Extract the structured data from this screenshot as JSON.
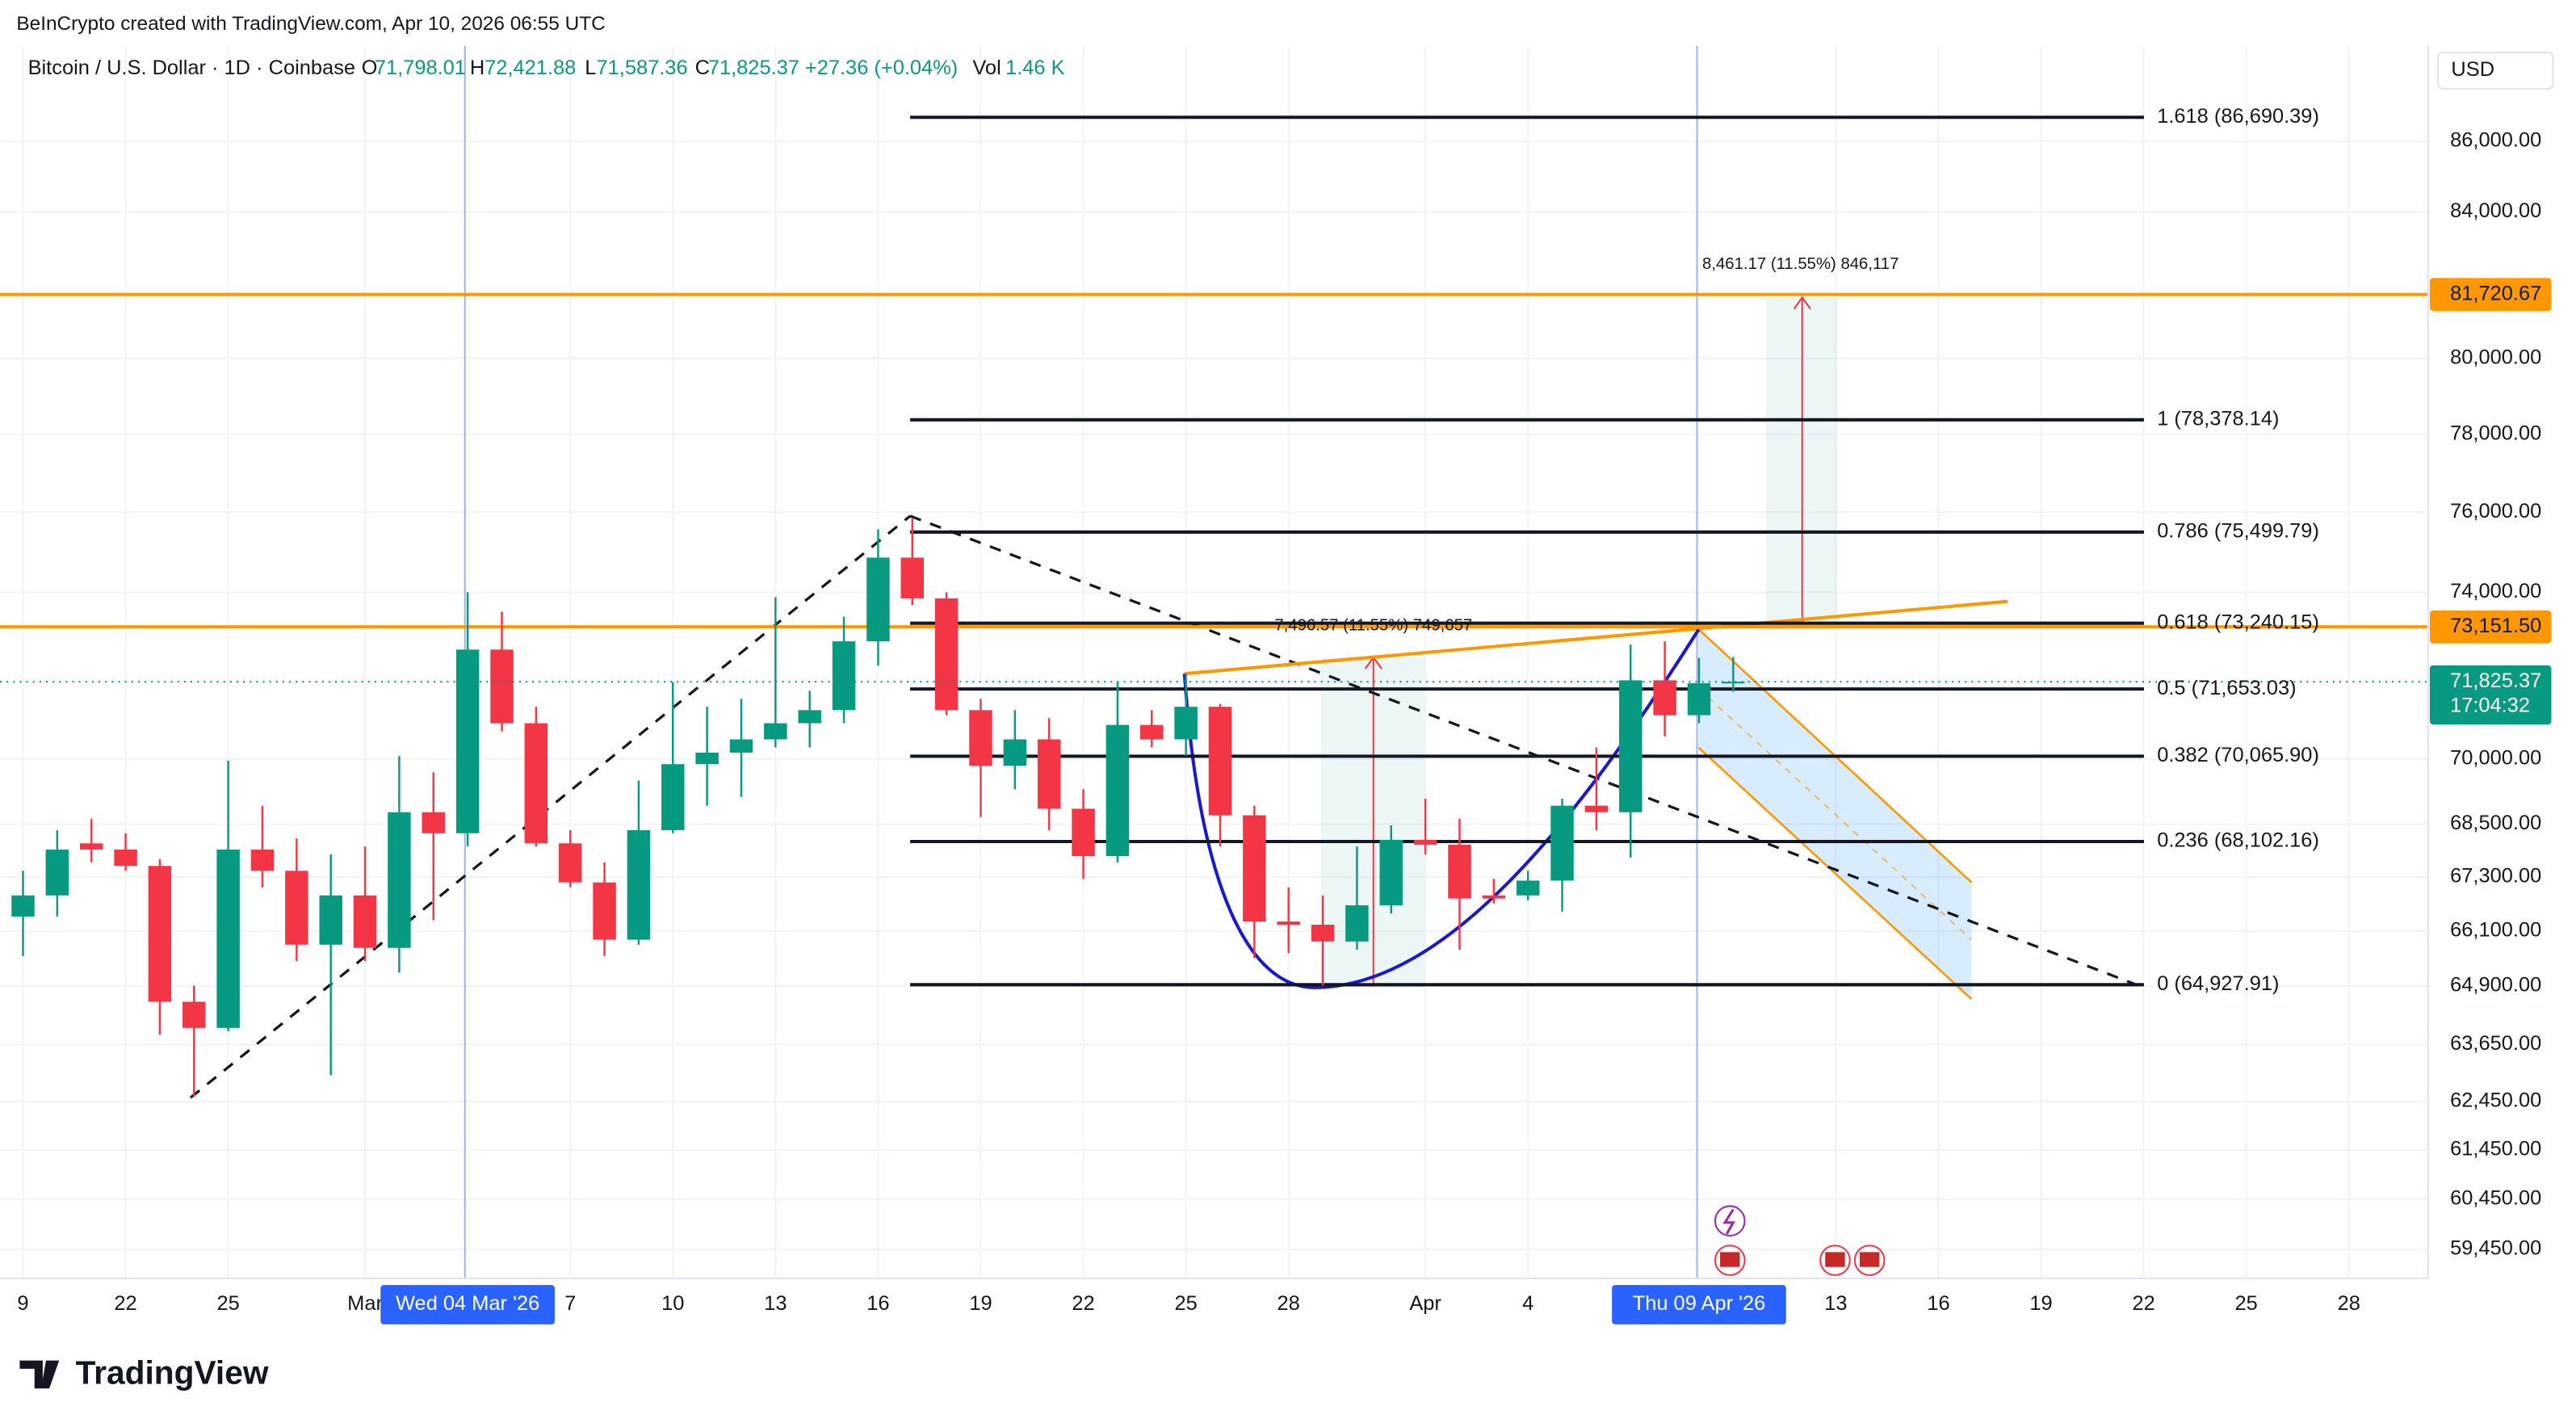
{
  "header": {
    "attribution": "BeInCrypto created with TradingView.com, Apr 10, 2026 06:55 UTC",
    "logo": "TradingView"
  },
  "chart_data": {
    "type": "candlestick",
    "title": "Bitcoin / U.S. Dollar · 1D · Coinbase",
    "legend_values": {
      "open_label": "O",
      "open": "71,798.01",
      "high_label": "H",
      "high": "72,421.88",
      "low_label": "L",
      "low": "71,587.36",
      "close_label": "C",
      "close": "71,825.37",
      "change": "+27.36 (+0.04%)",
      "volume_label": "Vol",
      "volume": "1.46 K"
    },
    "currency": "USD",
    "x": [
      "2026-02-19",
      "2026-02-20",
      "2026-02-21",
      "2026-02-22",
      "2026-02-23",
      "2026-02-24",
      "2026-02-25",
      "2026-02-26",
      "2026-02-27",
      "2026-02-28",
      "2026-03-01",
      "2026-03-02",
      "2026-03-03",
      "2026-03-04",
      "2026-03-05",
      "2026-03-06",
      "2026-03-07",
      "2026-03-08",
      "2026-03-09",
      "2026-03-10",
      "2026-03-11",
      "2026-03-12",
      "2026-03-13",
      "2026-03-14",
      "2026-03-15",
      "2026-03-16",
      "2026-03-17",
      "2026-03-18",
      "2026-03-19",
      "2026-03-20",
      "2026-03-21",
      "2026-03-22",
      "2026-03-23",
      "2026-03-24",
      "2026-03-25",
      "2026-03-26",
      "2026-03-27",
      "2026-03-28",
      "2026-03-29",
      "2026-03-30",
      "2026-03-31",
      "2026-04-01",
      "2026-04-02",
      "2026-04-03",
      "2026-04-04",
      "2026-04-05",
      "2026-04-06",
      "2026-04-07",
      "2026-04-08",
      "2026-04-09",
      "2026-04-10"
    ],
    "open": [
      66420,
      66890,
      68060,
      67920,
      67550,
      64560,
      64000,
      67920,
      67440,
      65800,
      66890,
      65730,
      68770,
      68290,
      72600,
      70840,
      68060,
      67180,
      65910,
      68360,
      69880,
      70150,
      70460,
      70840,
      71150,
      72800,
      74860,
      73850,
      71150,
      69840,
      70460,
      68850,
      67770,
      70800,
      70460,
      71230,
      68700,
      66310,
      66240,
      65870,
      66670,
      68140,
      68030,
      66890,
      66890,
      67220,
      68920,
      68770,
      71860,
      71030,
      71798.01
    ],
    "high": [
      67440,
      68360,
      68620,
      68290,
      67700,
      64910,
      69960,
      68920,
      68170,
      67810,
      67990,
      70070,
      69690,
      74000,
      73520,
      71230,
      68360,
      67630,
      69500,
      71820,
      71230,
      71420,
      73880,
      71610,
      73400,
      75570,
      75860,
      74000,
      71420,
      71150,
      70960,
      69300,
      71820,
      71150,
      72010,
      71300,
      68920,
      67070,
      66890,
      67990,
      68470,
      69080,
      68620,
      67260,
      67440,
      69080,
      70270,
      72720,
      72800,
      72400,
      72421.88
    ],
    "low": [
      65550,
      66420,
      67630,
      67440,
      63860,
      62550,
      63930,
      67070,
      65440,
      63000,
      65440,
      65190,
      66340,
      67990,
      70650,
      67990,
      67070,
      65550,
      65800,
      68290,
      68920,
      69120,
      70270,
      70270,
      70840,
      72210,
      73690,
      71030,
      68660,
      69300,
      68360,
      67260,
      67630,
      70270,
      70070,
      67990,
      65510,
      65620,
      64910,
      65690,
      66490,
      67810,
      65690,
      66710,
      66780,
      66530,
      68360,
      67740,
      70530,
      70840,
      71587.36
    ],
    "close": [
      66890,
      67920,
      67920,
      67550,
      64560,
      64000,
      67920,
      67440,
      65800,
      66890,
      65730,
      68770,
      68290,
      72600,
      70840,
      68060,
      67180,
      65910,
      68360,
      69880,
      70150,
      70460,
      70840,
      71150,
      72800,
      74860,
      73850,
      71150,
      69840,
      70460,
      68850,
      67770,
      70800,
      70460,
      71230,
      68700,
      66310,
      66240,
      65870,
      66670,
      68140,
      68030,
      66820,
      66820,
      67220,
      68920,
      68770,
      71860,
      71030,
      71790,
      71825.37
    ],
    "up_color": "#089981",
    "down_color": "#f23645",
    "log_scale": true,
    "grid": true,
    "ylim": [
      58875,
      88775
    ],
    "yticks": [
      {
        "value": 86000,
        "label": "86,000.00"
      },
      {
        "value": 84000,
        "label": "84,000.00"
      },
      {
        "value": 80000,
        "label": "80,000.00"
      },
      {
        "value": 78000,
        "label": "78,000.00"
      },
      {
        "value": 76000,
        "label": "76,000.00"
      },
      {
        "value": 74000,
        "label": "74,000.00"
      },
      {
        "value": 70000,
        "label": "70,000.00"
      },
      {
        "value": 68500,
        "label": "68,500.00"
      },
      {
        "value": 67300,
        "label": "67,300.00"
      },
      {
        "value": 66100,
        "label": "66,100.00"
      },
      {
        "value": 64900,
        "label": "64,900.00"
      },
      {
        "value": 63650,
        "label": "63,650.00"
      },
      {
        "value": 62450,
        "label": "62,450.00"
      },
      {
        "value": 61450,
        "label": "61,450.00"
      },
      {
        "value": 60450,
        "label": "60,450.00"
      },
      {
        "value": 59450,
        "label": "59,450.00"
      }
    ],
    "xticks": [
      {
        "value": "2026-02-19",
        "label": "9"
      },
      {
        "value": "2026-02-22",
        "label": "22"
      },
      {
        "value": "2026-02-25",
        "label": "25"
      },
      {
        "value": "2026-03-01",
        "label": "Mar"
      },
      {
        "value": "2026-03-07",
        "label": "7"
      },
      {
        "value": "2026-03-10",
        "label": "10"
      },
      {
        "value": "2026-03-13",
        "label": "13"
      },
      {
        "value": "2026-03-16",
        "label": "16"
      },
      {
        "value": "2026-03-19",
        "label": "19"
      },
      {
        "value": "2026-03-22",
        "label": "22"
      },
      {
        "value": "2026-03-25",
        "label": "25"
      },
      {
        "value": "2026-03-28",
        "label": "28"
      },
      {
        "value": "2026-04-01",
        "label": "Apr"
      },
      {
        "value": "2026-04-04",
        "label": "4"
      },
      {
        "value": "2026-04-13",
        "label": "13"
      },
      {
        "value": "2026-04-16",
        "label": "16"
      },
      {
        "value": "2026-04-19",
        "label": "19"
      },
      {
        "value": "2026-04-22",
        "label": "22"
      },
      {
        "value": "2026-04-25",
        "label": "25"
      },
      {
        "value": "2026-04-28",
        "label": "28"
      }
    ],
    "crosshair_labels": [
      {
        "value": "2026-03-04",
        "label": "Wed 04 Mar '26"
      },
      {
        "value": "2026-04-09",
        "label": "Thu 09 Apr '26"
      }
    ],
    "fib_levels": [
      {
        "value": 86690.39,
        "label": "1.618 (86,690.39)"
      },
      {
        "value": 78378.14,
        "label": "1 (78,378.14)"
      },
      {
        "value": 75499.79,
        "label": "0.786 (75,499.79)"
      },
      {
        "value": 73240.15,
        "label": "0.618 (73,240.15)"
      },
      {
        "value": 71653.03,
        "label": "0.5 (71,653.03)"
      },
      {
        "value": 70065.9,
        "label": "0.382 (70,065.90)"
      },
      {
        "value": 68102.16,
        "label": "0.236 (68,102.16)"
      },
      {
        "value": 64927.91,
        "label": "0 (64,927.91)"
      }
    ],
    "price_lines": [
      {
        "value": 81720.67,
        "label": "81,720.67",
        "color": "#ff9800"
      },
      {
        "value": 73151.5,
        "label": "73,151.50",
        "color": "#ff9800"
      }
    ],
    "last_price": {
      "value": 71825.37,
      "label": "71,825.37",
      "countdown": "17:04:32",
      "color": "#089981"
    },
    "annotations": [
      "8,461.17 (11.55%) 846,117",
      "7,496.57 (11.55%) 749,657"
    ]
  }
}
